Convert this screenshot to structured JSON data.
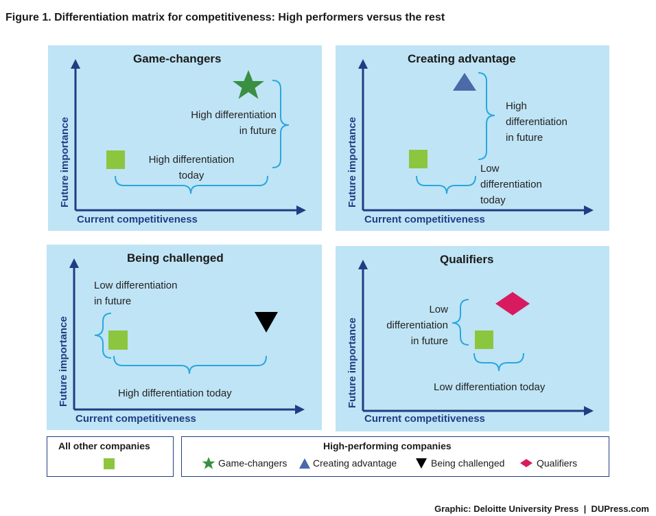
{
  "figure_title": "Figure 1. Differentiation matrix for competitiveness: High performers versus the rest",
  "axis_labels": {
    "y": "Future importance",
    "x": "Current competitiveness"
  },
  "panels": {
    "game_changers": {
      "title": "Game-changers",
      "future_note": [
        "High differentiation",
        "in future"
      ],
      "today_note": [
        "High differentiation",
        "today"
      ]
    },
    "creating_advantage": {
      "title": "Creating advantage",
      "future_note": [
        "High",
        "differentiation",
        "in future"
      ],
      "today_note": [
        "Low",
        "differentiation",
        "today"
      ]
    },
    "being_challenged": {
      "title": "Being challenged",
      "future_note": [
        "Low differentiation",
        "in future"
      ],
      "today_note": [
        "High differentiation today"
      ]
    },
    "qualifiers": {
      "title": "Qualifiers",
      "future_note": [
        "Low",
        "differentiation",
        "in future"
      ],
      "today_note": [
        "Low differentiation today"
      ]
    }
  },
  "legend": {
    "other_title": "All other companies",
    "high_title": "High-performing companies",
    "items": [
      "Game-changers",
      "Creating advantage",
      "Being challenged",
      "Qualifiers"
    ]
  },
  "credit": "Graphic: Deloitte University Press  |  DUPress.com",
  "colors": {
    "panel_bg": "#bfe4f5",
    "axis": "#1f3d84",
    "bracket": "#2aa6de",
    "other_square": "#8cc63f",
    "game_changer_star": "#3a8f43",
    "creating_advantage_triangle": "#4a6aa8",
    "being_challenged_triangle": "#000000",
    "qualifier_diamond": "#d81b60"
  },
  "icons": [
    "green-square",
    "green-star",
    "blue-triangle-up",
    "black-triangle-down",
    "pink-diamond"
  ]
}
